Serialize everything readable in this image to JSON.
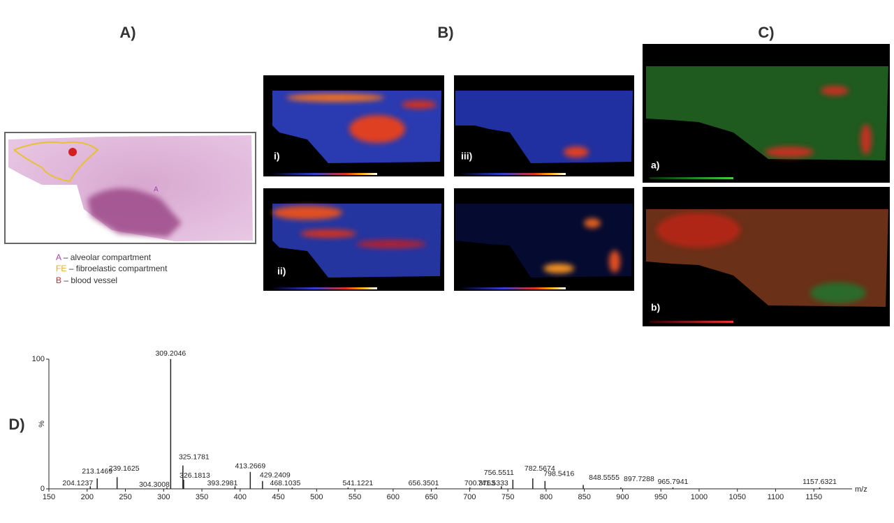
{
  "panels": {
    "A": {
      "label": "A)",
      "legend": [
        {
          "key": "A",
          "text": "– alveolar compartment"
        },
        {
          "key": "FE",
          "text": "– fibroelastic compartment"
        },
        {
          "key": "B",
          "text": "– blood vessel"
        }
      ]
    },
    "B": {
      "label": "B)",
      "images": [
        "i)",
        "ii)",
        "iii)"
      ]
    },
    "C": {
      "label": "C)",
      "images": [
        "a)",
        "b)"
      ]
    },
    "D": {
      "label": "D)"
    }
  },
  "chart_data": {
    "type": "bar",
    "x_label": "m/z",
    "y_label": "%",
    "x": [
      204.1237,
      213.1469,
      239.1625,
      304.3008,
      309.2046,
      325.1781,
      326.1813,
      393.2981,
      413.2669,
      429.2409,
      468.1035,
      541.1221,
      656.3501,
      700.3763,
      741.5333,
      756.5511,
      782.5674,
      798.5416,
      848.5555,
      897.7288,
      965.7941,
      1157.6321
    ],
    "values": [
      2,
      8,
      9,
      1,
      100,
      18,
      7,
      2,
      13,
      6,
      1,
      1,
      1,
      1,
      2,
      7,
      8,
      6,
      3,
      1,
      1,
      1
    ],
    "color": "#222222",
    "xlim": [
      150,
      1200
    ],
    "xticks": [
      150,
      200,
      250,
      300,
      350,
      400,
      450,
      500,
      550,
      600,
      650,
      700,
      750,
      800,
      850,
      900,
      950,
      1000,
      1050,
      1100,
      1150
    ],
    "ylim": [
      0,
      100
    ],
    "yticks": [
      0,
      100
    ]
  }
}
